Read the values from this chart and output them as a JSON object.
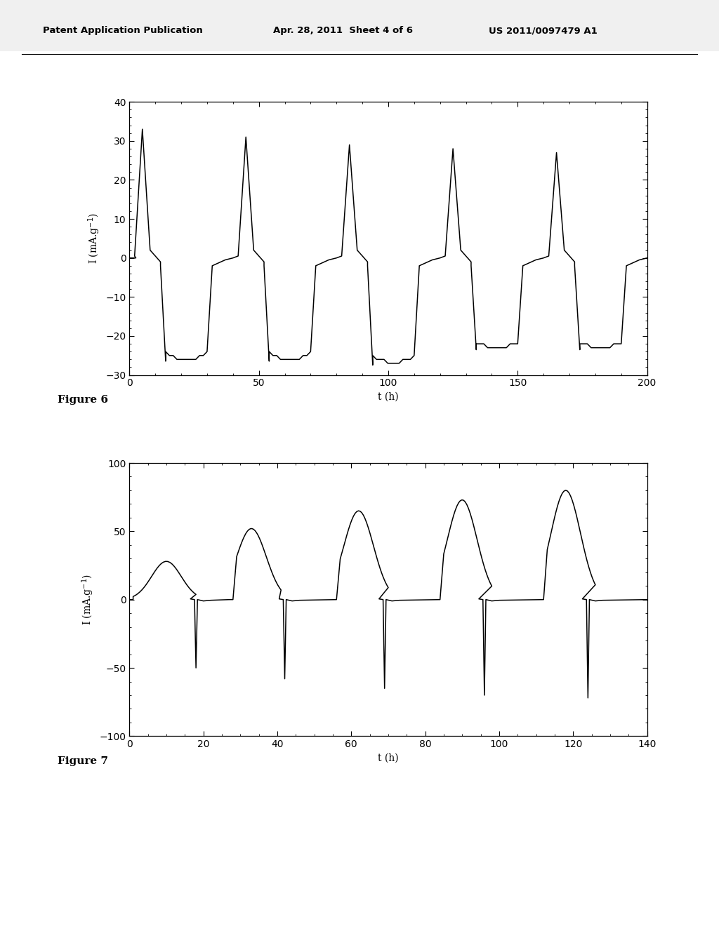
{
  "header_left": "Patent Application Publication",
  "header_mid": "Apr. 28, 2011  Sheet 4 of 6",
  "header_right": "US 2011/0097479 A1",
  "fig6_label": "Figure 6",
  "fig7_label": "Figure 7",
  "fig6": {
    "xlim": [
      0,
      200
    ],
    "ylim": [
      -30,
      40
    ],
    "xticks": [
      0,
      50,
      100,
      150,
      200
    ],
    "yticks": [
      -30,
      -20,
      -10,
      0,
      10,
      20,
      30,
      40
    ],
    "xlabel": "t (h)",
    "ylabel": "I (mA.g$^{-1}$)"
  },
  "fig7": {
    "xlim": [
      0,
      140
    ],
    "ylim": [
      -100,
      100
    ],
    "xticks": [
      0,
      20,
      40,
      60,
      80,
      100,
      120,
      140
    ],
    "yticks": [
      -100,
      -50,
      0,
      50,
      100
    ],
    "xlabel": "t (h)",
    "ylabel": "I (mA.g$^{-1}$)"
  },
  "bg_color": "#ffffff",
  "line_color": "#000000",
  "text_color": "#000000"
}
